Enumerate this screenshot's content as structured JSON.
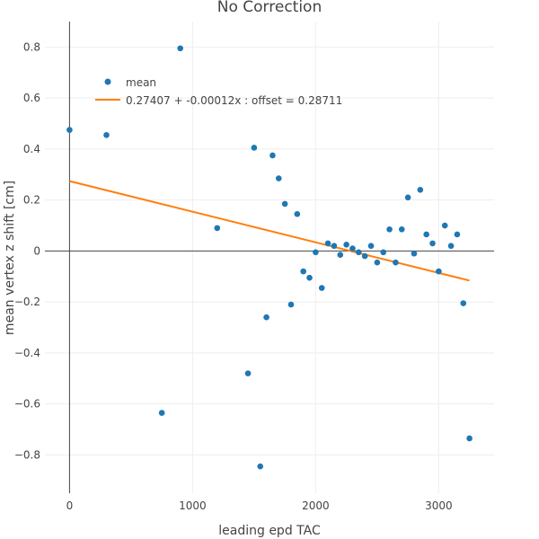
{
  "chart_data": {
    "type": "scatter",
    "title": "No Correction",
    "xlabel": "leading epd TAC",
    "ylabel": "mean vertex z shift [cm]",
    "xlim": [
      -200,
      3450
    ],
    "ylim": [
      -0.95,
      0.9
    ],
    "x_ticks": [
      0,
      1000,
      2000,
      3000
    ],
    "x_tick_labels": [
      "0",
      "1000",
      "2000",
      "3000"
    ],
    "y_ticks": [
      -0.8,
      -0.6,
      -0.4,
      -0.2,
      0,
      0.2,
      0.4,
      0.6,
      0.8
    ],
    "y_tick_labels": [
      "−0.8",
      "−0.6",
      "−0.4",
      "−0.2",
      "0",
      "0.2",
      "0.4",
      "0.6",
      "0.8"
    ],
    "grid": true,
    "legend_position": "top-left",
    "series": [
      {
        "name": "mean",
        "mode": "markers",
        "color": "#1f77b4",
        "x": [
          0,
          300,
          750,
          900,
          1200,
          1450,
          1500,
          1550,
          1600,
          1650,
          1700,
          1750,
          1800,
          1850,
          1900,
          1950,
          2000,
          2050,
          2100,
          2150,
          2200,
          2250,
          2300,
          2350,
          2400,
          2450,
          2500,
          2550,
          2600,
          2650,
          2700,
          2750,
          2800,
          2850,
          2900,
          2950,
          3000,
          3050,
          3100,
          3150,
          3200,
          3250
        ],
        "y": [
          0.475,
          0.455,
          -0.635,
          0.795,
          0.09,
          -0.48,
          0.405,
          -0.845,
          -0.26,
          0.375,
          0.285,
          0.185,
          -0.21,
          0.145,
          -0.08,
          -0.105,
          -0.005,
          -0.145,
          0.03,
          0.02,
          -0.015,
          0.025,
          0.01,
          -0.005,
          -0.02,
          0.02,
          -0.045,
          -0.005,
          0.085,
          -0.045,
          0.085,
          0.21,
          -0.01,
          0.24,
          0.065,
          0.03,
          -0.08,
          0.1,
          0.02,
          0.065,
          -0.205,
          -0.735
        ]
      },
      {
        "name": "0.27407 + -0.00012x : offset = 0.28711",
        "mode": "lines",
        "color": "#ff7f0e",
        "x": [
          0,
          3250
        ],
        "y": [
          0.27407,
          -0.11593
        ]
      }
    ]
  }
}
